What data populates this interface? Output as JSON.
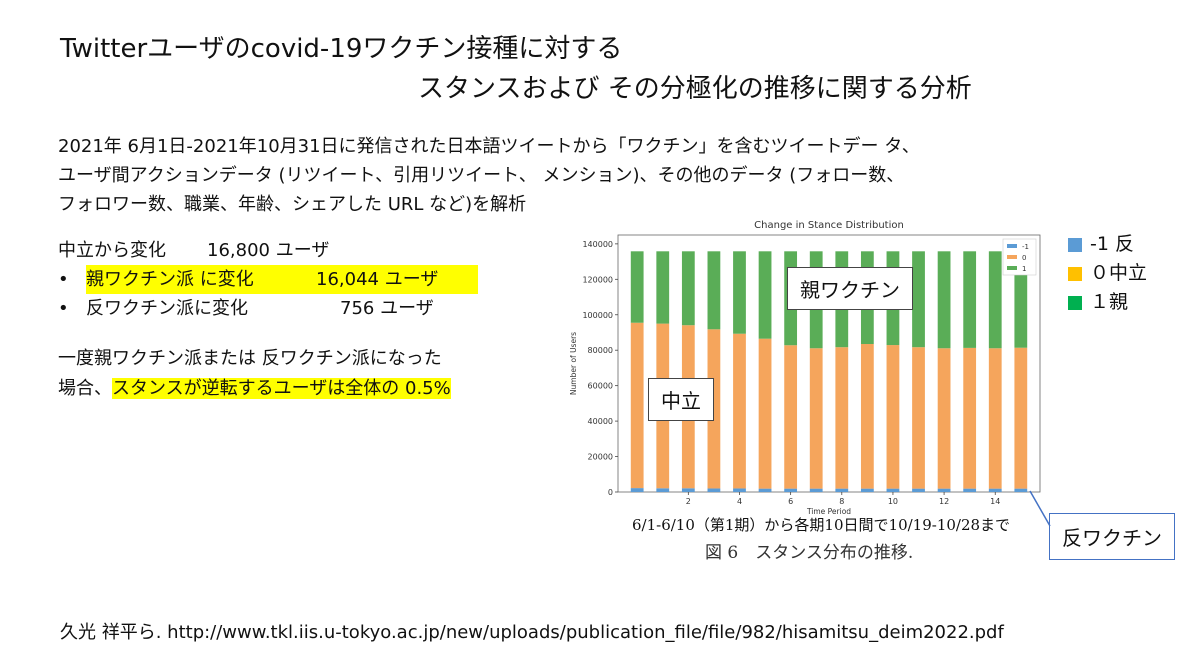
{
  "title": {
    "line1": "Twitterユーザのcovid-19ワクチン接種に対する",
    "line2": "スタンスおよび その分極化の推移に関する分析"
  },
  "description": {
    "line1": "2021年 6月1日-2021年10月31日に発信された日本語ツイートから「ワクチン」を含むツイートデー タ、",
    "line2": "ユーザ間アクションデータ (リツイート、引用リツイート、 メンション)、その他のデータ (フォロー数、",
    "line3": "フォロワー数、職業、年齢、シェアした URL など)を解析"
  },
  "stats": {
    "neutral_change_label": "中立から変化",
    "neutral_change_value": "16,800 ユーザ",
    "bullet": "•",
    "pro_label": "親ワクチン派 に変化",
    "pro_value": "16,044 ユーザ",
    "anti_label": "反ワクチン派に変化",
    "anti_value": "756 ユーザ"
  },
  "reversal": {
    "line1": "一度親ワクチン派または 反ワクチン派になった",
    "line2_prefix": "場合、",
    "line2_highlight": "スタンスが逆転するユーザは全体の 0.5%"
  },
  "side_legend": {
    "items": [
      {
        "label": "-1 反",
        "color": "#5b9bd5"
      },
      {
        "label": "０中立",
        "color": "#ffc000"
      },
      {
        "label": "１親",
        "color": "#00b050"
      }
    ]
  },
  "annotations": {
    "pro": "親ワクチン",
    "neutral": "中立",
    "anti": "反ワクチン"
  },
  "period_note": "6/1-6/10（第1期）から各期10日間で10/19-10/28まで",
  "figure_caption": "図 6　スタンス分布の推移.",
  "citation": "久光 祥平ら. http://www.tkl.iis.u-tokyo.ac.jp/new/uploads/publication_file/file/982/hisamitsu_deim2022.pdf",
  "chart_data": {
    "type": "bar",
    "stacked": true,
    "title": "Change in Stance Distribution",
    "xlabel": "Time Period",
    "ylabel": "Number of Users",
    "ylim": [
      0,
      145000
    ],
    "yticks": [
      0,
      20000,
      40000,
      60000,
      80000,
      100000,
      120000,
      140000
    ],
    "xticks": [
      2,
      4,
      6,
      8,
      10,
      12,
      14
    ],
    "x": [
      0,
      1,
      2,
      3,
      4,
      5,
      6,
      7,
      8,
      9,
      10,
      11,
      12,
      13,
      14,
      15
    ],
    "series": [
      {
        "name": "-1",
        "color": "#5b9bd5",
        "values": [
          2200,
          2100,
          2100,
          2000,
          2000,
          1900,
          1900,
          1900,
          1900,
          1900,
          1900,
          1900,
          1900,
          1900,
          1900,
          1900
        ]
      },
      {
        "name": "0",
        "color": "#f5a55c",
        "values": [
          93300,
          92900,
          92000,
          89800,
          87300,
          84600,
          80900,
          79200,
          79800,
          81600,
          81000,
          79800,
          79200,
          79400,
          79200,
          79500
        ]
      },
      {
        "name": "1",
        "color": "#5aad57",
        "values": [
          40300,
          40800,
          41700,
          44000,
          46500,
          49300,
          53000,
          54700,
          54100,
          52300,
          52900,
          54100,
          54700,
          54500,
          54700,
          54400
        ]
      }
    ],
    "legend": [
      "-1",
      "0",
      "1"
    ],
    "legend_position": "top-right"
  }
}
